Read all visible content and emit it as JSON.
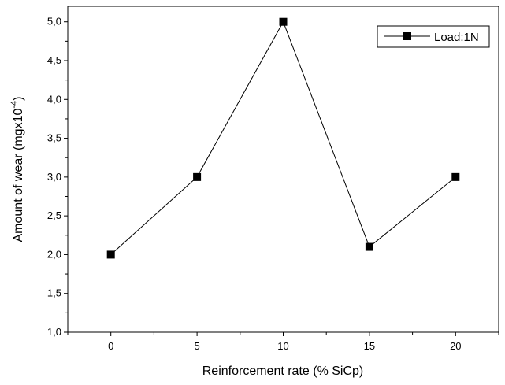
{
  "chart_data": {
    "type": "line",
    "x": [
      0,
      5,
      10,
      15,
      20
    ],
    "series": [
      {
        "name": "Load:1N",
        "values": [
          2.0,
          3.0,
          5.0,
          2.1,
          3.0
        ]
      }
    ],
    "xlabel": "Reinforcement rate (% SiCp)",
    "ylabel_main": "Amount of wear (mgx10",
    "ylabel_exp": "-4",
    "ylabel_close": ")",
    "xlim": [
      -2.5,
      22.5
    ],
    "ylim": [
      1.0,
      5.2
    ],
    "xticks": [
      "0",
      "5",
      "10",
      "15",
      "20"
    ],
    "yticks": [
      "1,0",
      "1,5",
      "2,0",
      "2,5",
      "3,0",
      "3,5",
      "4,0",
      "4,5",
      "5,0"
    ],
    "grid": false,
    "legend_position": "top-right",
    "line_color": "#000000",
    "marker": "square"
  }
}
